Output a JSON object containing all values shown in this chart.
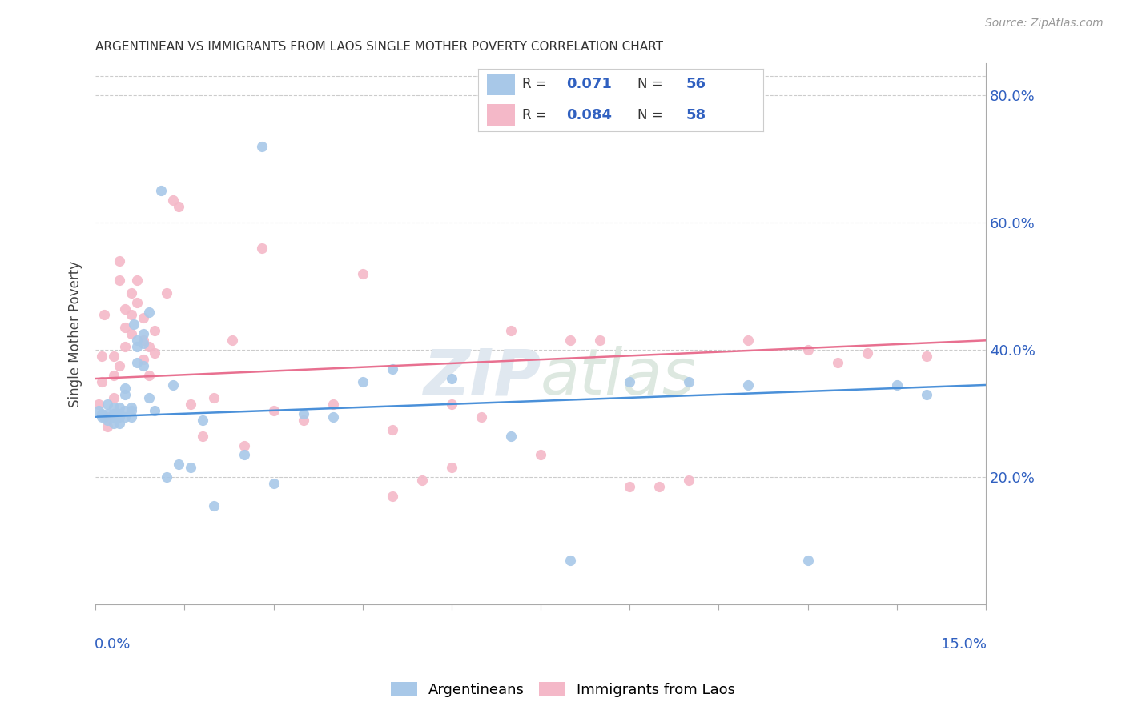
{
  "title": "ARGENTINEAN VS IMMIGRANTS FROM LAOS SINGLE MOTHER POVERTY CORRELATION CHART",
  "source": "Source: ZipAtlas.com",
  "ylabel": "Single Mother Poverty",
  "legend_bottom_blue": "Argentineans",
  "legend_bottom_pink": "Immigrants from Laos",
  "blue_color": "#a8c8e8",
  "pink_color": "#f4b8c8",
  "blue_line_color": "#4a90d9",
  "pink_line_color": "#e87090",
  "R_blue_str": "0.071",
  "N_blue_str": "56",
  "R_pink_str": "0.084",
  "N_pink_str": "58",
  "accent_color": "#3060c0",
  "blue_scatter_x": [
    0.0005,
    0.001,
    0.001,
    0.0015,
    0.002,
    0.002,
    0.002,
    0.003,
    0.003,
    0.003,
    0.003,
    0.0035,
    0.004,
    0.004,
    0.004,
    0.004,
    0.005,
    0.005,
    0.005,
    0.005,
    0.006,
    0.006,
    0.006,
    0.0065,
    0.007,
    0.007,
    0.007,
    0.008,
    0.008,
    0.008,
    0.009,
    0.009,
    0.01,
    0.011,
    0.012,
    0.013,
    0.014,
    0.016,
    0.018,
    0.02,
    0.025,
    0.028,
    0.03,
    0.035,
    0.04,
    0.045,
    0.05,
    0.06,
    0.07,
    0.08,
    0.09,
    0.1,
    0.11,
    0.12,
    0.135,
    0.14
  ],
  "blue_scatter_y": [
    0.305,
    0.295,
    0.3,
    0.295,
    0.315,
    0.29,
    0.3,
    0.31,
    0.3,
    0.295,
    0.285,
    0.3,
    0.31,
    0.3,
    0.295,
    0.285,
    0.305,
    0.295,
    0.34,
    0.33,
    0.31,
    0.305,
    0.295,
    0.44,
    0.415,
    0.405,
    0.38,
    0.425,
    0.41,
    0.375,
    0.46,
    0.325,
    0.305,
    0.65,
    0.2,
    0.345,
    0.22,
    0.215,
    0.29,
    0.155,
    0.235,
    0.72,
    0.19,
    0.3,
    0.295,
    0.35,
    0.37,
    0.355,
    0.265,
    0.07,
    0.35,
    0.35,
    0.345,
    0.07,
    0.345,
    0.33
  ],
  "pink_scatter_x": [
    0.0005,
    0.001,
    0.001,
    0.0015,
    0.002,
    0.002,
    0.003,
    0.003,
    0.003,
    0.004,
    0.004,
    0.004,
    0.005,
    0.005,
    0.005,
    0.006,
    0.006,
    0.006,
    0.007,
    0.007,
    0.008,
    0.008,
    0.008,
    0.009,
    0.009,
    0.01,
    0.01,
    0.012,
    0.013,
    0.014,
    0.016,
    0.018,
    0.02,
    0.023,
    0.025,
    0.028,
    0.03,
    0.035,
    0.04,
    0.045,
    0.05,
    0.055,
    0.06,
    0.065,
    0.07,
    0.08,
    0.09,
    0.1,
    0.11,
    0.12,
    0.125,
    0.13,
    0.14,
    0.05,
    0.06,
    0.075,
    0.085,
    0.095
  ],
  "pink_scatter_y": [
    0.315,
    0.39,
    0.35,
    0.455,
    0.295,
    0.28,
    0.325,
    0.39,
    0.36,
    0.54,
    0.51,
    0.375,
    0.465,
    0.435,
    0.405,
    0.49,
    0.455,
    0.425,
    0.51,
    0.475,
    0.45,
    0.415,
    0.385,
    0.405,
    0.36,
    0.43,
    0.395,
    0.49,
    0.635,
    0.625,
    0.315,
    0.265,
    0.325,
    0.415,
    0.25,
    0.56,
    0.305,
    0.29,
    0.315,
    0.52,
    0.275,
    0.195,
    0.315,
    0.295,
    0.43,
    0.415,
    0.185,
    0.195,
    0.415,
    0.4,
    0.38,
    0.395,
    0.39,
    0.17,
    0.215,
    0.235,
    0.415,
    0.185
  ],
  "xmin": 0.0,
  "xmax": 0.15,
  "ymin": 0.0,
  "ymax": 0.85,
  "ytick_vals": [
    0.2,
    0.4,
    0.6,
    0.8
  ],
  "blue_trend_x0": 0.0,
  "blue_trend_y0": 0.295,
  "blue_trend_x1": 0.15,
  "blue_trend_y1": 0.345,
  "pink_trend_x0": 0.0,
  "pink_trend_y0": 0.355,
  "pink_trend_x1": 0.15,
  "pink_trend_y1": 0.415
}
